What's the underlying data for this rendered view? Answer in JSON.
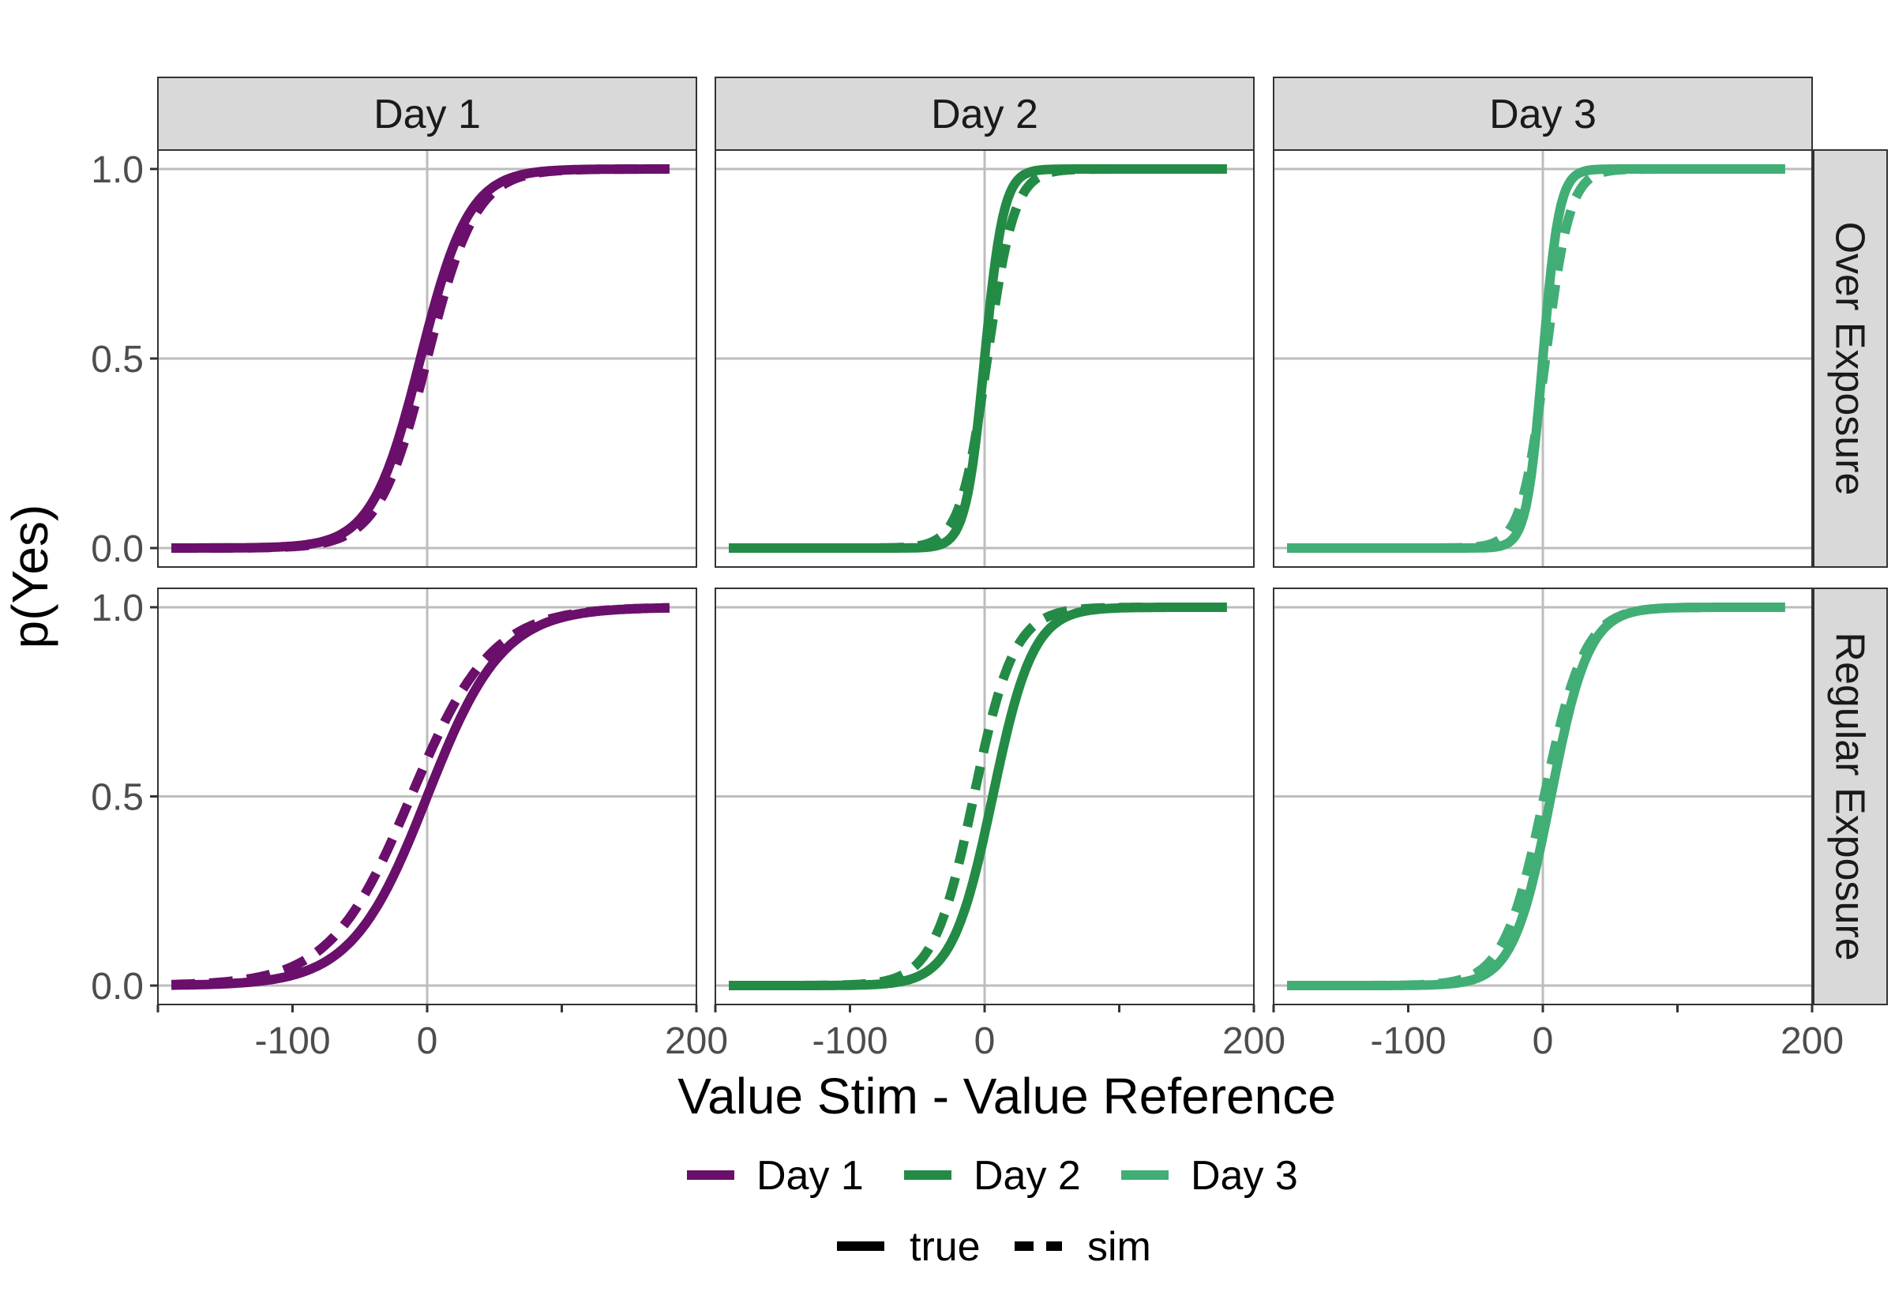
{
  "chart_data": {
    "type": "line",
    "title": "",
    "xlabel": "Value Stim - Value Reference",
    "ylabel": "p(Yes)",
    "xlim": [
      -200,
      200
    ],
    "ylim": [
      -0.05,
      1.05
    ],
    "x_ticks": [
      -100,
      0,
      200
    ],
    "x_tick_labels": [
      "-100",
      "0",
      "200"
    ],
    "x_minor_ticks": [
      -200,
      100
    ],
    "y_ticks": [
      0.0,
      0.5,
      1.0
    ],
    "y_tick_labels": [
      "0.0",
      "0.5",
      "1.0"
    ],
    "x_range": [
      -190,
      180
    ],
    "grid": true,
    "legend_position": "bottom",
    "colors": {
      "Day 1": "#6A0F6B",
      "Day 2": "#238B45",
      "Day 3": "#41AE76"
    },
    "columns": [
      "Day 1",
      "Day 2",
      "Day 3"
    ],
    "rows": [
      "Over Exposure",
      "Regular Exposure"
    ],
    "legend": {
      "color_entries": [
        "Day 1",
        "Day 2",
        "Day 3"
      ],
      "linetype_entries": [
        "true",
        "sim"
      ]
    },
    "series_params_description": "logistic curves p = 1/(1+exp(-(x - mu)/s)) per panel",
    "panels": [
      {
        "row": "Over Exposure",
        "col": "Day 1",
        "true": {
          "mu": -5,
          "s": 18
        },
        "sim": {
          "mu": 0,
          "s": 18
        }
      },
      {
        "row": "Over Exposure",
        "col": "Day 2",
        "true": {
          "mu": 0,
          "s": 7
        },
        "sim": {
          "mu": 2,
          "s": 10
        }
      },
      {
        "row": "Over Exposure",
        "col": "Day 3",
        "true": {
          "mu": 0,
          "s": 6
        },
        "sim": {
          "mu": 2,
          "s": 9
        }
      },
      {
        "row": "Regular Exposure",
        "col": "Day 1",
        "true": {
          "mu": 0,
          "s": 28
        },
        "sim": {
          "mu": -12,
          "s": 30
        }
      },
      {
        "row": "Regular Exposure",
        "col": "Day 2",
        "true": {
          "mu": 6,
          "s": 15
        },
        "sim": {
          "mu": -8,
          "s": 15
        }
      },
      {
        "row": "Regular Exposure",
        "col": "Day 3",
        "true": {
          "mu": 6,
          "s": 14
        },
        "sim": {
          "mu": 1,
          "s": 15
        }
      }
    ]
  }
}
